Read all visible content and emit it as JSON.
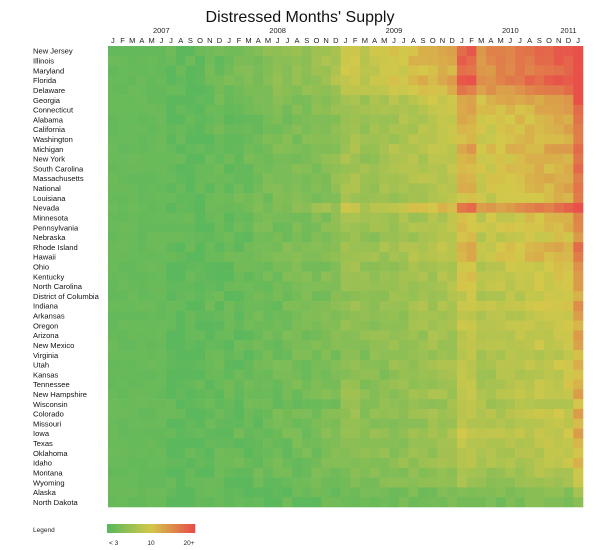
{
  "chart_data": {
    "type": "heatmap",
    "title": "Distressed Months' Supply",
    "years": [
      {
        "label": "2007",
        "index": 5
      },
      {
        "label": "2008",
        "index": 17
      },
      {
        "label": "2009",
        "index": 29
      },
      {
        "label": "2010",
        "index": 41
      },
      {
        "label": "2011",
        "index": 47
      }
    ],
    "months": [
      "J",
      "F",
      "M",
      "A",
      "M",
      "J",
      "J",
      "A",
      "S",
      "O",
      "N",
      "D",
      "J",
      "F",
      "M",
      "A",
      "M",
      "J",
      "J",
      "A",
      "S",
      "O",
      "N",
      "D",
      "J",
      "F",
      "M",
      "A",
      "M",
      "J",
      "J",
      "A",
      "S",
      "O",
      "N",
      "D",
      "J",
      "F",
      "M",
      "A",
      "M",
      "J",
      "J",
      "A",
      "S",
      "O",
      "N",
      "D",
      "J"
    ],
    "rows": [
      "New Jersey",
      "Illinois",
      "Maryland",
      "Florida",
      "Delaware",
      "Georgia",
      "Connecticut",
      "Alabama",
      "California",
      "Washington",
      "Michigan",
      "New York",
      "South Carolina",
      "Massachusetts",
      "National",
      "Louisiana",
      "Nevada",
      "Minnesota",
      "Pennsylvania",
      "Nebraska",
      "Rhode Island",
      "Hawaii",
      "Ohio",
      "Kentucky",
      "North Carolina",
      "District of Columbia",
      "Indiana",
      "Arkansas",
      "Oregon",
      "Arizona",
      "New Mexico",
      "Virginia",
      "Utah",
      "Kansas",
      "Tennessee",
      "New Hampshire",
      "Wisconsin",
      "Colorado",
      "Missouri",
      "Iowa",
      "Texas",
      "Oklahoma",
      "Idaho",
      "Montana",
      "Wyoming",
      "Alaska",
      "North Dakota"
    ],
    "row_levels": [
      0.95,
      0.95,
      0.9,
      0.95,
      0.85,
      0.7,
      0.65,
      0.6,
      0.6,
      0.6,
      0.65,
      0.6,
      0.6,
      0.6,
      0.6,
      0.55,
      0.85,
      0.55,
      0.55,
      0.5,
      0.6,
      0.6,
      0.5,
      0.5,
      0.5,
      0.45,
      0.5,
      0.45,
      0.45,
      0.45,
      0.45,
      0.4,
      0.45,
      0.4,
      0.45,
      0.45,
      0.4,
      0.45,
      0.4,
      0.45,
      0.4,
      0.4,
      0.4,
      0.35,
      0.3,
      0.2,
      0.15
    ],
    "color_scale": {
      "low": "#5cb85c",
      "mid": "#d4c84a",
      "high": "#e8504a"
    },
    "legend": {
      "title": "Legend",
      "labels": [
        "< 3",
        "10",
        "20+"
      ]
    }
  }
}
